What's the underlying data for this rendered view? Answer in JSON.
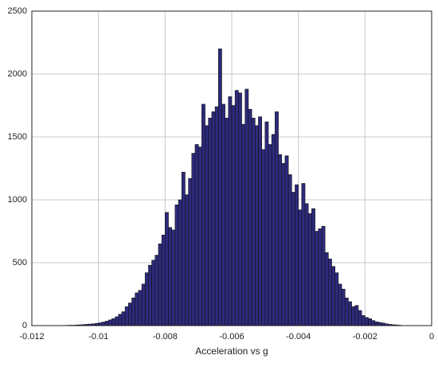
{
  "chart_data": {
    "type": "histogram",
    "xlabel": "Acceleration vs g",
    "bins": [
      -0.0112,
      -0.0111,
      -0.011,
      -0.0109,
      -0.0108,
      -0.0107,
      -0.0106,
      -0.0105,
      -0.0104,
      -0.0103,
      -0.0102,
      -0.0101,
      -0.01,
      -0.0099,
      -0.0098,
      -0.0097,
      -0.0096,
      -0.0095,
      -0.0094,
      -0.0093,
      -0.0092,
      -0.0091,
      -0.009,
      -0.0089,
      -0.0088,
      -0.0087,
      -0.0086,
      -0.0085,
      -0.0084,
      -0.0083,
      -0.0082,
      -0.0081,
      -0.008,
      -0.0079,
      -0.0078,
      -0.0077,
      -0.0076,
      -0.0075,
      -0.0074,
      -0.0073,
      -0.0072,
      -0.0071,
      -0.007,
      -0.0069,
      -0.0068,
      -0.0067,
      -0.0066,
      -0.0065,
      -0.0064,
      -0.0063,
      -0.0062,
      -0.0061,
      -0.006,
      -0.0059,
      -0.0058,
      -0.0057,
      -0.0056,
      -0.0055,
      -0.0054,
      -0.0053,
      -0.0052,
      -0.0051,
      -0.005,
      -0.0049,
      -0.0048,
      -0.0047,
      -0.0046,
      -0.0045,
      -0.0044,
      -0.0043,
      -0.0042,
      -0.0041,
      -0.004,
      -0.0039,
      -0.0038,
      -0.0037,
      -0.0036,
      -0.0035,
      -0.0034,
      -0.0033,
      -0.0032,
      -0.0031,
      -0.003,
      -0.0029,
      -0.0028,
      -0.0027,
      -0.0026,
      -0.0025,
      -0.0024,
      -0.0023,
      -0.0022,
      -0.0021,
      -0.002,
      -0.0019,
      -0.0018,
      -0.0017,
      -0.0016,
      -0.0015,
      -0.0014,
      -0.0013,
      -0.0012,
      -0.0011,
      -0.001,
      -0.0009,
      -0.0008
    ],
    "values": [
      1,
      1,
      2,
      3,
      3,
      5,
      6,
      8,
      10,
      12,
      14,
      18,
      22,
      28,
      35,
      45,
      55,
      70,
      90,
      110,
      150,
      180,
      220,
      260,
      280,
      330,
      420,
      480,
      520,
      560,
      650,
      720,
      900,
      780,
      760,
      960,
      1000,
      1220,
      1040,
      1170,
      1370,
      1440,
      1420,
      1760,
      1590,
      1650,
      1700,
      1740,
      2200,
      1760,
      1650,
      1820,
      1750,
      1870,
      1850,
      1600,
      1880,
      1720,
      1650,
      1590,
      1660,
      1400,
      1620,
      1440,
      1520,
      1700,
      1360,
      1290,
      1350,
      1200,
      1060,
      1120,
      920,
      1130,
      970,
      890,
      930,
      750,
      770,
      790,
      580,
      530,
      470,
      420,
      330,
      290,
      220,
      190,
      150,
      160,
      120,
      80,
      65,
      55,
      40,
      30,
      25,
      20,
      14,
      10,
      7,
      5,
      3,
      1
    ],
    "color": "#2e2a7c",
    "xlim": [
      -0.012,
      0
    ],
    "xticks": [
      -0.012,
      -0.01,
      -0.008,
      -0.006,
      -0.004,
      -0.002,
      0
    ],
    "ylim": [
      0,
      2500
    ],
    "yticks": [
      0,
      500,
      1000,
      1500,
      2000,
      2500
    ],
    "grid": true
  }
}
